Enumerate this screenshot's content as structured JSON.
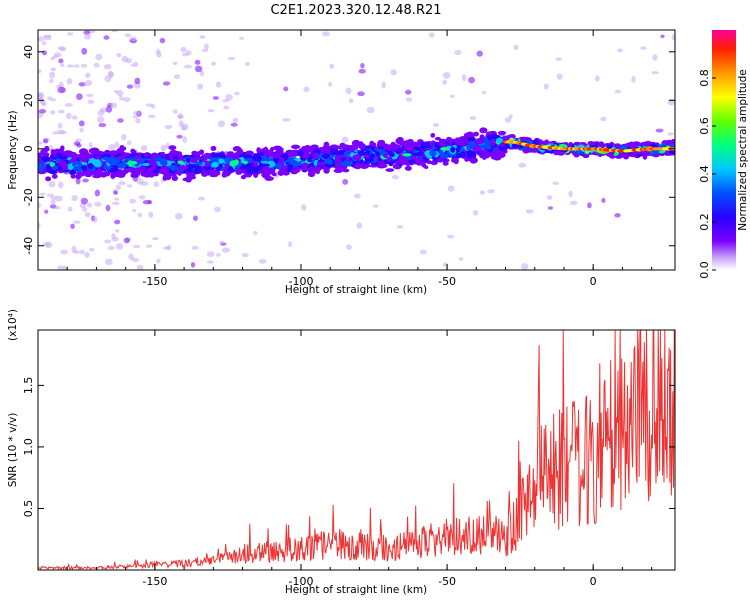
{
  "title": "C2E1.2023.320.12.48.R21",
  "colors": {
    "snr_line": "#ee3333",
    "frame": "#000000",
    "colormap": [
      "#ffffff",
      "#c9a7f7",
      "#7a00ff",
      "#2a00ff",
      "#0050ff",
      "#00c8ff",
      "#00ff80",
      "#60ff00",
      "#ffff00",
      "#ff9900",
      "#ff2000",
      "#ff0099"
    ]
  },
  "chart_data": [
    {
      "type": "heatmap",
      "xlabel": "Height of straight line (km)",
      "ylabel": "Frequency (Hz)",
      "xlim": [
        -190,
        28
      ],
      "ylim": [
        -50,
        49
      ],
      "x_ticks": [
        -150,
        -100,
        -50,
        0
      ],
      "y_ticks": [
        -40,
        -20,
        0,
        20,
        40
      ],
      "ridge": {
        "x": [
          -190,
          -160,
          -140,
          -120,
          -100,
          -80,
          -60,
          -45,
          -35,
          -28,
          -20,
          -10,
          0,
          10,
          20,
          28
        ],
        "y": [
          -6,
          -6,
          -6,
          -6,
          -5,
          -3,
          -2,
          0,
          2,
          3,
          1,
          0,
          0,
          -1,
          0,
          0
        ]
      },
      "colorbar": {
        "label": "Normalized spectral amplitude",
        "ticks": [
          0.0,
          0.2,
          0.4,
          0.6,
          0.8
        ],
        "tick_labels": [
          "0.0",
          "0.2",
          "0.4",
          "0.6",
          "0.8"
        ],
        "range": [
          0,
          1
        ]
      }
    },
    {
      "type": "line",
      "xlabel": "Height of straight line (km)",
      "ylabel": "SNR (10 * v/v)",
      "y_multiplier": "(x10⁴)",
      "xlim": [
        -190,
        28
      ],
      "ylim": [
        0,
        1.95
      ],
      "x_ticks": [
        -150,
        -100,
        -50,
        0
      ],
      "y_ticks": [
        0.5,
        1.0,
        1.5
      ],
      "y_tick_labels": [
        "0.5",
        "1.0",
        "1.5"
      ],
      "series": [
        {
          "x": [
            -190,
            -170,
            -160,
            -150,
            -140,
            -130,
            -120,
            -110,
            -100,
            -90,
            -80,
            -70,
            -60,
            -50,
            -40,
            -30,
            -25,
            -20,
            -15,
            -10,
            -5,
            0,
            5,
            10,
            15,
            20,
            28
          ],
          "y": [
            0.02,
            0.02,
            0.03,
            0.05,
            0.06,
            0.08,
            0.15,
            0.17,
            0.2,
            0.25,
            0.22,
            0.2,
            0.25,
            0.3,
            0.35,
            0.3,
            0.5,
            0.8,
            0.9,
            0.95,
            1.0,
            1.05,
            1.2,
            1.3,
            1.45,
            1.55,
            1.65
          ]
        }
      ]
    }
  ]
}
